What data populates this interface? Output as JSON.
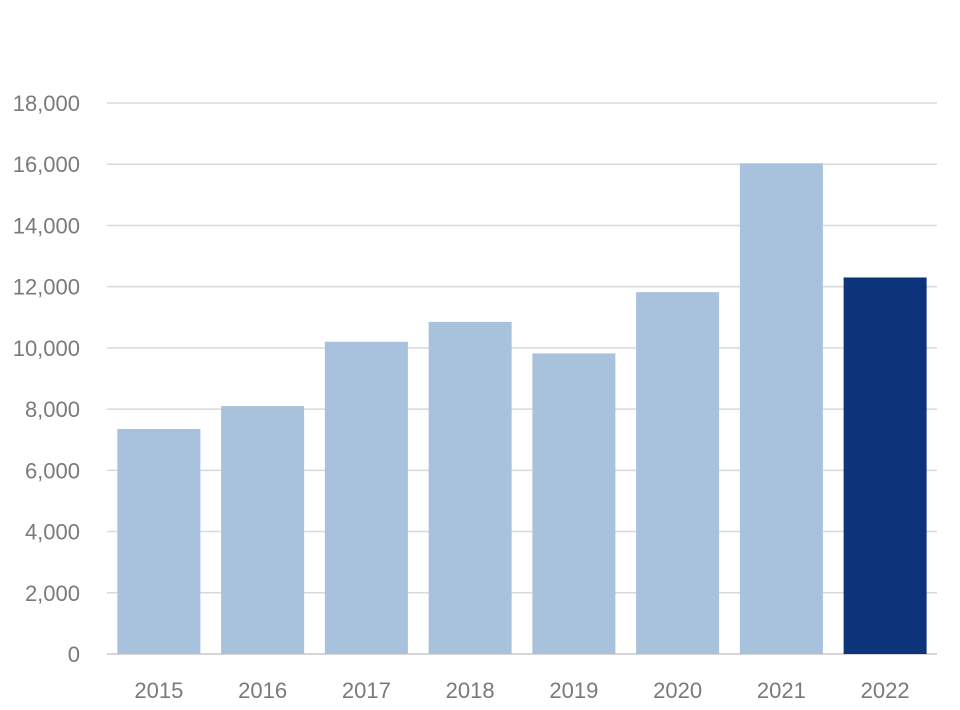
{
  "chart_data": {
    "type": "bar",
    "title": "",
    "xlabel": "",
    "ylabel": "",
    "categories": [
      "2015",
      "2016",
      "2017",
      "2018",
      "2019",
      "2020",
      "2021",
      "2022"
    ],
    "values": [
      7350,
      8100,
      10200,
      10850,
      9820,
      11820,
      16030,
      12300
    ],
    "ylim": [
      0,
      18000
    ],
    "yticks": [
      0,
      2000,
      4000,
      6000,
      8000,
      10000,
      12000,
      14000,
      16000,
      18000
    ],
    "ytick_labels": [
      "0",
      "2,000",
      "4,000",
      "6,000",
      "8,000",
      "10,000",
      "12,000",
      "14,000",
      "16,000",
      "18,000"
    ],
    "grid": true,
    "legend": "none",
    "colors": {
      "bar": "#a8c1dc",
      "highlight": "#0c347a",
      "grid": "#d9d9d9",
      "tick_text": "#7a7a7a"
    },
    "highlight_category": "2022"
  }
}
